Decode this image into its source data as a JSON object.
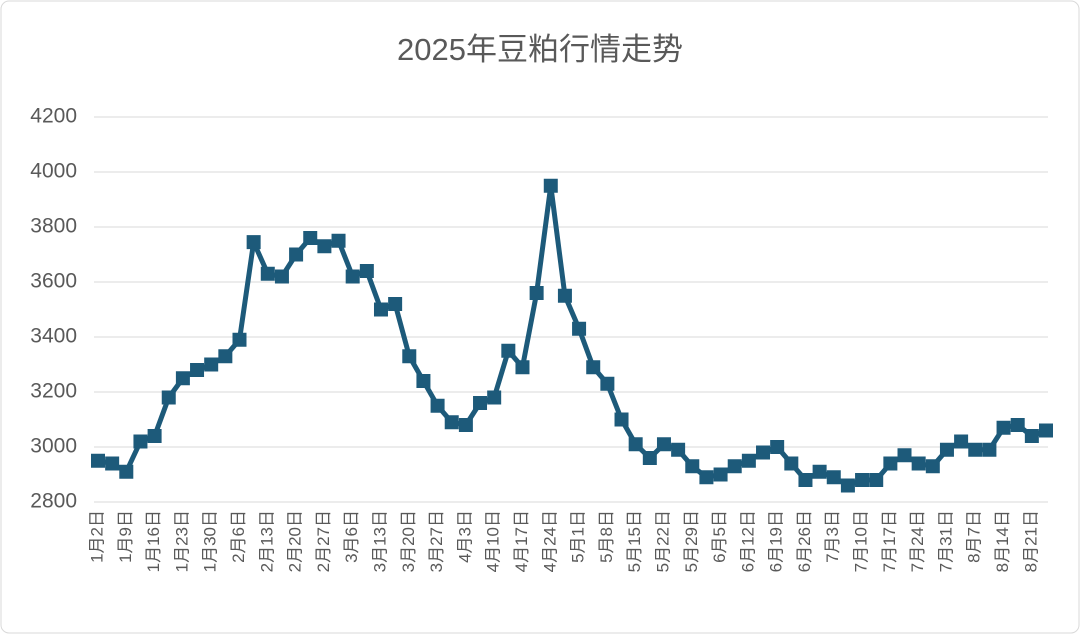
{
  "chart_data": {
    "type": "line",
    "title": "2025年豆粕行情走势",
    "categories": [
      "1月2日",
      null,
      "1月9日",
      null,
      "1月16日",
      null,
      "1月23日",
      null,
      "1月30日",
      null,
      "2月6日",
      null,
      "2月13日",
      null,
      "2月20日",
      null,
      "2月27日",
      null,
      "3月6日",
      null,
      "3月13日",
      null,
      "3月20日",
      null,
      "3月27日",
      null,
      "4月3日",
      null,
      "4月10日",
      null,
      "4月17日",
      null,
      "4月24日",
      null,
      "5月1日",
      null,
      "5月8日",
      null,
      "5月15日",
      null,
      "5月22日",
      null,
      "5月29日",
      null,
      "6月5日",
      null,
      "6月12日",
      null,
      "6月19日",
      null,
      "6月26日",
      null,
      "7月3日",
      null,
      "7月10日",
      null,
      "7月17日",
      null,
      "7月24日",
      null,
      "7月31日",
      null,
      "8月7日",
      null,
      "8月14日",
      null,
      "8月21日",
      null
    ],
    "series": [
      {
        "color": "#1d5a7a",
        "values": [
          2950,
          2940,
          2910,
          3020,
          3040,
          3180,
          3250,
          3280,
          3300,
          3330,
          3390,
          3745,
          3630,
          3620,
          3700,
          3760,
          3730,
          3750,
          3620,
          3640,
          3500,
          3520,
          3330,
          3240,
          3150,
          3090,
          3080,
          3160,
          3180,
          3350,
          3290,
          3560,
          3950,
          3550,
          3430,
          3290,
          3230,
          3100,
          3010,
          2960,
          3010,
          2990,
          2930,
          2890,
          2900,
          2930,
          2950,
          2980,
          3000,
          2940,
          2880,
          2910,
          2890,
          2860,
          2880,
          2880,
          2940,
          2970,
          2940,
          2930,
          2990,
          3020,
          2990,
          2990,
          3070,
          3080,
          3040,
          3060
        ]
      }
    ],
    "ylim": [
      2800,
      4200
    ],
    "yticks": [
      2800,
      3000,
      3200,
      3400,
      3600,
      3800,
      4000,
      4200
    ],
    "grid": true
  }
}
